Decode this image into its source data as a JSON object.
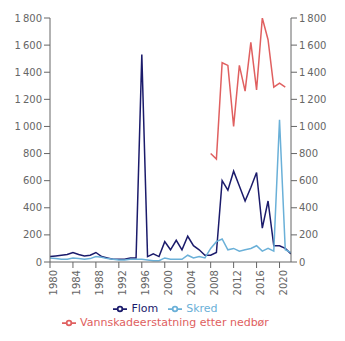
{
  "chart_data": {
    "type": "line",
    "x": [
      1980,
      1981,
      1982,
      1983,
      1984,
      1985,
      1986,
      1987,
      1988,
      1989,
      1990,
      1991,
      1992,
      1993,
      1994,
      1995,
      1996,
      1997,
      1998,
      1999,
      2000,
      2001,
      2002,
      2003,
      2004,
      2005,
      2006,
      2007,
      2008,
      2009,
      2010,
      2011,
      2012,
      2013,
      2014,
      2015,
      2016,
      2017,
      2018,
      2019,
      2020,
      2021,
      2022
    ],
    "series": [
      {
        "name": "Flom",
        "color": "#1b1b6b",
        "values": [
          40,
          45,
          50,
          55,
          70,
          55,
          45,
          50,
          70,
          40,
          30,
          20,
          20,
          20,
          30,
          30,
          1530,
          40,
          60,
          40,
          150,
          90,
          160,
          90,
          190,
          120,
          90,
          50,
          50,
          70,
          600,
          530,
          670,
          560,
          450,
          550,
          660,
          250,
          450,
          120,
          120,
          100,
          60
        ]
      },
      {
        "name": "Skred",
        "color": "#6ab0d8",
        "values": [
          30,
          25,
          20,
          20,
          30,
          25,
          20,
          25,
          40,
          35,
          25,
          20,
          15,
          15,
          20,
          20,
          20,
          15,
          10,
          10,
          30,
          20,
          20,
          20,
          50,
          30,
          40,
          30,
          100,
          150,
          170,
          90,
          100,
          80,
          90,
          100,
          120,
          80,
          100,
          80,
          1050,
          90,
          70
        ]
      },
      {
        "name": "Vannskadeerstatning etter nedbør",
        "color": "#e06060",
        "axis": "y2",
        "values": [
          null,
          null,
          null,
          null,
          null,
          null,
          null,
          null,
          null,
          null,
          null,
          null,
          null,
          null,
          null,
          null,
          null,
          null,
          null,
          null,
          null,
          null,
          null,
          null,
          null,
          null,
          null,
          null,
          800,
          760,
          1470,
          1450,
          1000,
          1450,
          1260,
          1620,
          1270,
          1800,
          1640,
          1290,
          1320,
          1290,
          null
        ]
      }
    ],
    "xlim": [
      1980,
      2022
    ],
    "xticks": [
      1980,
      1984,
      1988,
      1992,
      1996,
      2000,
      2004,
      2008,
      2012,
      2016,
      2020
    ],
    "ylim": [
      0,
      1800
    ],
    "yticks": [
      0,
      200,
      400,
      600,
      800,
      {
        "value": 1000,
        "label": "1 000"
      },
      {
        "value": 1200,
        "label": "1 200"
      },
      {
        "value": 1400,
        "label": "1 400"
      },
      {
        "value": 1600,
        "label": "1 600"
      },
      {
        "value": 1800,
        "label": "1 800"
      }
    ],
    "y2lim": [
      0,
      1800
    ],
    "y2ticks": [
      0,
      200,
      400,
      600,
      800,
      {
        "value": 1000,
        "label": "1 000"
      },
      {
        "value": 1200,
        "label": "1 200"
      },
      {
        "value": 1400,
        "label": "1 400"
      },
      {
        "value": 1600,
        "label": "1 600"
      },
      {
        "value": 1800,
        "label": "1 800"
      }
    ],
    "grid": false,
    "legend": "bottom"
  }
}
